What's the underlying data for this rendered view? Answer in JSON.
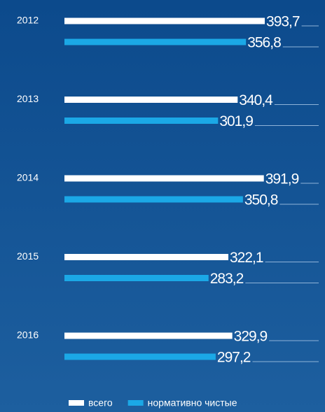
{
  "chart_data": {
    "type": "bar",
    "orientation": "horizontal",
    "categories": [
      "2012",
      "2013",
      "2014",
      "2015",
      "2016"
    ],
    "series": [
      {
        "name": "всего",
        "color": "#ffffff",
        "values": [
          393.7,
          340.4,
          391.9,
          322.1,
          329.9
        ],
        "value_labels": [
          "393,7",
          "340,4",
          "391,9",
          "322,1",
          "329,9"
        ]
      },
      {
        "name": "нормативно чистые",
        "color": "#1ba8e6",
        "values": [
          356.8,
          301.9,
          350.8,
          283.2,
          297.2
        ],
        "value_labels": [
          "356,8",
          "301,9",
          "350,8",
          "283,2",
          "297,2"
        ]
      }
    ],
    "legend": "bottom"
  }
}
